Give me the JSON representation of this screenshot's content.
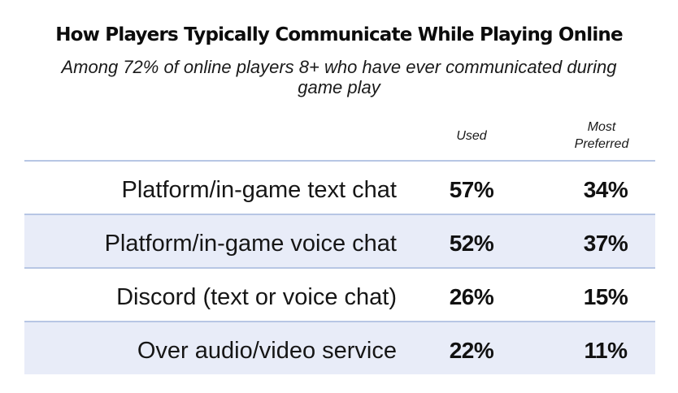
{
  "chart_data": {
    "type": "table",
    "title": "How Players Typically Communicate While Playing Online",
    "subtitle": "Among 72% of online players 8+ who have ever communicated during game play",
    "columns": [
      "Used",
      "Most Preferred"
    ],
    "rows": [
      {
        "label": "Platform/in-game text chat",
        "used": "57%",
        "preferred": "34%"
      },
      {
        "label": "Platform/in-game voice chat",
        "used": "52%",
        "preferred": "37%"
      },
      {
        "label": "Discord (text or voice chat)",
        "used": "26%",
        "preferred": "15%"
      },
      {
        "label": "Over audio/video service",
        "used": "22%",
        "preferred": "11%"
      }
    ]
  },
  "colors": {
    "row_shade": "#e8ecf8",
    "row_divider": "#b7c6e4",
    "text": "#111111"
  }
}
